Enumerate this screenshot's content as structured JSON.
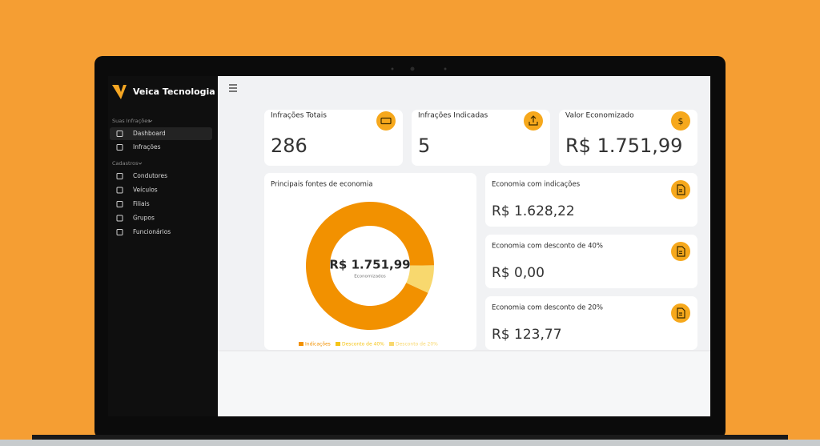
{
  "app": {
    "brand": "Veica Tecnologia",
    "sidebar": [
      {
        "title": "Suas Infrações",
        "items": [
          "Dashboard",
          "Infrações"
        ]
      },
      {
        "title": "Cadastros",
        "items": [
          "Condutores",
          "Veículos",
          "Filiais",
          "Grupos",
          "Funcionários"
        ]
      }
    ]
  },
  "stats": [
    {
      "title": "Infrações Totais",
      "value": 286
    },
    {
      "title": "Infrações Indicadas",
      "value": 5
    },
    {
      "title": "Valor Economizado",
      "value": "R$ 1.751,99"
    }
  ],
  "chart_data": {
    "type": "pie",
    "title": "Principais fontes de economia",
    "categories": [
      "Indicações",
      "Desconto de 40%",
      "Desconto de 20%"
    ],
    "values": [
      1628.22,
      0,
      123.77
    ],
    "colors": [
      "#f29100",
      "#f5c518",
      "#f8d86e"
    ],
    "center_label": "R$ 1.751,99",
    "center_caption": "Economizados"
  },
  "savings_cards": [
    {
      "title": "Economia com indicações",
      "value": "R$ 1.628,22"
    },
    {
      "title": "Economia com desconto de 40%",
      "value": "R$ 0,00"
    },
    {
      "title": "Economia com desconto de 20%",
      "value": "R$ 123,77"
    }
  ]
}
